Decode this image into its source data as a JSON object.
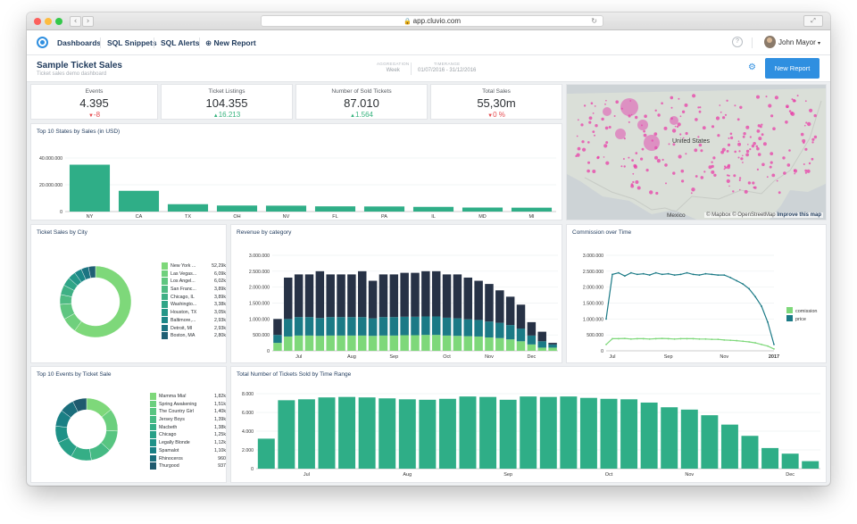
{
  "browser": {
    "url": "app.cluvio.com",
    "back_icon": "chevron-left-icon",
    "forward_icon": "chevron-right-icon"
  },
  "nav": {
    "items": [
      "Dashboards",
      "SQL Snippets",
      "SQL Alerts"
    ],
    "new_report": "New Report",
    "help": "?",
    "user": "John Mayor"
  },
  "header": {
    "title": "Sample Ticket Sales",
    "subtitle": "Ticket sales demo dashboard",
    "aggregation_label": "AGGREGATION",
    "aggregation_value": "Week",
    "timerange_label": "TIMERANGE",
    "timerange_value": "01/07/2016 - 31/12/2016",
    "button": "New Report"
  },
  "kpis": [
    {
      "label": "Events",
      "value": "4.395",
      "delta": "-8",
      "dir": "down"
    },
    {
      "label": "Ticket Listings",
      "value": "104.355",
      "delta": "16.213",
      "dir": "up"
    },
    {
      "label": "Number of Sold Tickets",
      "value": "87.010",
      "delta": "1.564",
      "dir": "up"
    },
    {
      "label": "Total Sales",
      "value": "55,30m",
      "delta": "0 %",
      "dir": "down"
    }
  ],
  "map": {
    "label": "United States",
    "label2": "Mexico",
    "attribution": "© Mapbox © OpenStreetMap",
    "improve": "Improve this map"
  },
  "colors": {
    "teal": "#2fae87",
    "green": "#7ed87a",
    "navy": "#273246",
    "darkteal": "#1b7a86",
    "accent": "#2f8fe0"
  },
  "charts": {
    "top_states": {
      "type": "bar",
      "title": "Top 10 States by Sales (in USD)",
      "categories": [
        "NY",
        "CA",
        "TX",
        "OH",
        "NV",
        "FL",
        "PA",
        "IL",
        "MD",
        "MI"
      ],
      "values": [
        35000000,
        15500000,
        5500000,
        4500000,
        4400000,
        3900000,
        3800000,
        3500000,
        3000000,
        2900000
      ],
      "ymax": 48000000,
      "ticks": [
        {
          "v": 0,
          "l": "0"
        },
        {
          "v": 20000000,
          "l": "20.000.000"
        },
        {
          "v": 40000000,
          "l": "40.000.000"
        }
      ]
    },
    "sales_by_city": {
      "type": "pie",
      "title": "Ticket Sales by City",
      "items": [
        {
          "name": "New York ...",
          "value": "52,29k",
          "v": 52.29,
          "color": "#7ed87a"
        },
        {
          "name": "Las Vegas...",
          "value": "6,09k",
          "v": 6.09,
          "color": "#6fd07d"
        },
        {
          "name": "Los Angel...",
          "value": "6,02k",
          "v": 6.02,
          "color": "#5fc680"
        },
        {
          "name": "San Franc...",
          "value": "3,89k",
          "v": 3.89,
          "color": "#4fbb83"
        },
        {
          "name": "Chicago, IL",
          "value": "3,89k",
          "v": 3.89,
          "color": "#3fb085"
        },
        {
          "name": "Washingto...",
          "value": "3,38k",
          "v": 3.38,
          "color": "#2fa587"
        },
        {
          "name": "Houston, TX",
          "value": "3,05k",
          "v": 3.05,
          "color": "#249688"
        },
        {
          "name": "Baltimore,...",
          "value": "2,93k",
          "v": 2.93,
          "color": "#1c8788"
        },
        {
          "name": "Detroit, MI",
          "value": "2,93k",
          "v": 2.93,
          "color": "#1c7482"
        },
        {
          "name": "Boston, MA",
          "value": "2,80k",
          "v": 2.8,
          "color": "#1f5f74"
        }
      ]
    },
    "revenue_by_category": {
      "type": "bar",
      "stacked": true,
      "title": "Revenue by category",
      "ymax": 3000000,
      "ticks": [
        {
          "v": 0,
          "l": "0"
        },
        {
          "v": 500000,
          "l": "500.000"
        },
        {
          "v": 1000000,
          "l": "1.000.000"
        },
        {
          "v": 1500000,
          "l": "1.500.000"
        },
        {
          "v": 2000000,
          "l": "2.000.000"
        },
        {
          "v": 2500000,
          "l": "2.500.000"
        },
        {
          "v": 3000000,
          "l": "3.000.000"
        }
      ],
      "xlabels": [
        {
          "i": 2,
          "l": "Jul"
        },
        {
          "i": 7,
          "l": "Aug"
        },
        {
          "i": 11,
          "l": "Sep"
        },
        {
          "i": 16,
          "l": "Oct"
        },
        {
          "i": 20,
          "l": "Nov"
        },
        {
          "i": 24,
          "l": "Dec"
        }
      ],
      "series": [
        {
          "name": "green",
          "color": "#7ed87a",
          "values": [
            250000,
            450000,
            480000,
            480000,
            470000,
            480000,
            480000,
            480000,
            480000,
            470000,
            480000,
            480000,
            490000,
            490000,
            500000,
            500000,
            480000,
            470000,
            460000,
            450000,
            420000,
            400000,
            360000,
            300000,
            200000,
            100000,
            100000
          ]
        },
        {
          "name": "teal",
          "color": "#1b7a86",
          "values": [
            250000,
            550000,
            580000,
            580000,
            560000,
            580000,
            580000,
            580000,
            580000,
            550000,
            580000,
            580000,
            580000,
            580000,
            580000,
            580000,
            560000,
            550000,
            530000,
            520000,
            500000,
            480000,
            450000,
            400000,
            280000,
            200000,
            100000
          ]
        },
        {
          "name": "navy",
          "color": "#273246",
          "values": [
            500000,
            1300000,
            1340000,
            1340000,
            1470000,
            1340000,
            1340000,
            1340000,
            1440000,
            1180000,
            1340000,
            1340000,
            1380000,
            1380000,
            1420000,
            1420000,
            1360000,
            1380000,
            1310000,
            1230000,
            1180000,
            1020000,
            890000,
            750000,
            420000,
            300000,
            50000
          ]
        }
      ]
    },
    "commission_over_time": {
      "type": "line",
      "title": "Commission over Time",
      "ymax": 3000000,
      "ticks": [
        {
          "v": 0,
          "l": "0"
        },
        {
          "v": 500000,
          "l": "500.000"
        },
        {
          "v": 1000000,
          "l": "1.000.000"
        },
        {
          "v": 1500000,
          "l": "1.500.000"
        },
        {
          "v": 2000000,
          "l": "2.000.000"
        },
        {
          "v": 2500000,
          "l": "2.500.000"
        },
        {
          "v": 3000000,
          "l": "3.000.000"
        }
      ],
      "xlabels": [
        {
          "i": 1,
          "l": "Jul"
        },
        {
          "i": 10,
          "l": "Sep"
        },
        {
          "i": 19,
          "l": "Nov"
        },
        {
          "i": 27,
          "l": "2017"
        }
      ],
      "series": [
        {
          "name": "comission",
          "color": "#7ed87a",
          "values": [
            200000,
            380000,
            380000,
            390000,
            370000,
            380000,
            380000,
            370000,
            380000,
            390000,
            380000,
            370000,
            380000,
            380000,
            380000,
            370000,
            370000,
            360000,
            360000,
            340000,
            330000,
            320000,
            300000,
            280000,
            250000,
            200000,
            150000,
            60000
          ]
        },
        {
          "name": "price",
          "color": "#1b7a86",
          "values": [
            1000000,
            2400000,
            2450000,
            2350000,
            2450000,
            2400000,
            2420000,
            2380000,
            2450000,
            2400000,
            2420000,
            2380000,
            2400000,
            2450000,
            2400000,
            2380000,
            2420000,
            2400000,
            2380000,
            2380000,
            2300000,
            2200000,
            2100000,
            1950000,
            1700000,
            1400000,
            900000,
            200000
          ]
        }
      ]
    },
    "top_events": {
      "type": "pie",
      "title": "Top 10 Events by Ticket Sale",
      "items": [
        {
          "name": "Mamma Mia!",
          "value": "1,82k",
          "v": 1.82,
          "color": "#7ed87a"
        },
        {
          "name": "Spring Awakening",
          "value": "1,51k",
          "v": 1.51,
          "color": "#6bcf7e"
        },
        {
          "name": "The Country Girl",
          "value": "1,40k",
          "v": 1.4,
          "color": "#58c581"
        },
        {
          "name": "Jersey Boys",
          "value": "1,39k",
          "v": 1.39,
          "color": "#46ba84"
        },
        {
          "name": "Macbeth",
          "value": "1,38k",
          "v": 1.38,
          "color": "#35ae86"
        },
        {
          "name": "Chicago",
          "value": "1,25k",
          "v": 1.25,
          "color": "#27a087"
        },
        {
          "name": "Legally Blonde",
          "value": "1,12k",
          "v": 1.12,
          "color": "#1e9187"
        },
        {
          "name": "Spamalot",
          "value": "1,10k",
          "v": 1.1,
          "color": "#1a8085"
        },
        {
          "name": "Rhinoceros",
          "value": "960",
          "v": 0.96,
          "color": "#1b6e7c"
        },
        {
          "name": "Thurgood",
          "value": "937",
          "v": 0.937,
          "color": "#1f5a6e"
        }
      ]
    },
    "tickets_by_time": {
      "type": "bar",
      "title": "Total Number of Tickets Sold by Time Range",
      "color": "#2fae87",
      "ymax": 8000,
      "ticks": [
        {
          "v": 0,
          "l": "0"
        },
        {
          "v": 2000,
          "l": "2.000"
        },
        {
          "v": 4000,
          "l": "4.000"
        },
        {
          "v": 6000,
          "l": "6.000"
        },
        {
          "v": 8000,
          "l": "8.000"
        }
      ],
      "xlabels": [
        {
          "i": 2,
          "l": "Jul"
        },
        {
          "i": 7,
          "l": "Aug"
        },
        {
          "i": 12,
          "l": "Sep"
        },
        {
          "i": 17,
          "l": "Oct"
        },
        {
          "i": 21,
          "l": "Nov"
        },
        {
          "i": 26,
          "l": "Dec"
        }
      ],
      "values": [
        3200,
        7300,
        7400,
        7600,
        7650,
        7600,
        7500,
        7400,
        7350,
        7450,
        7700,
        7650,
        7350,
        7700,
        7650,
        7700,
        7550,
        7450,
        7400,
        7050,
        6550,
        6300,
        5700,
        4700,
        3500,
        2200,
        1600,
        800
      ]
    }
  }
}
